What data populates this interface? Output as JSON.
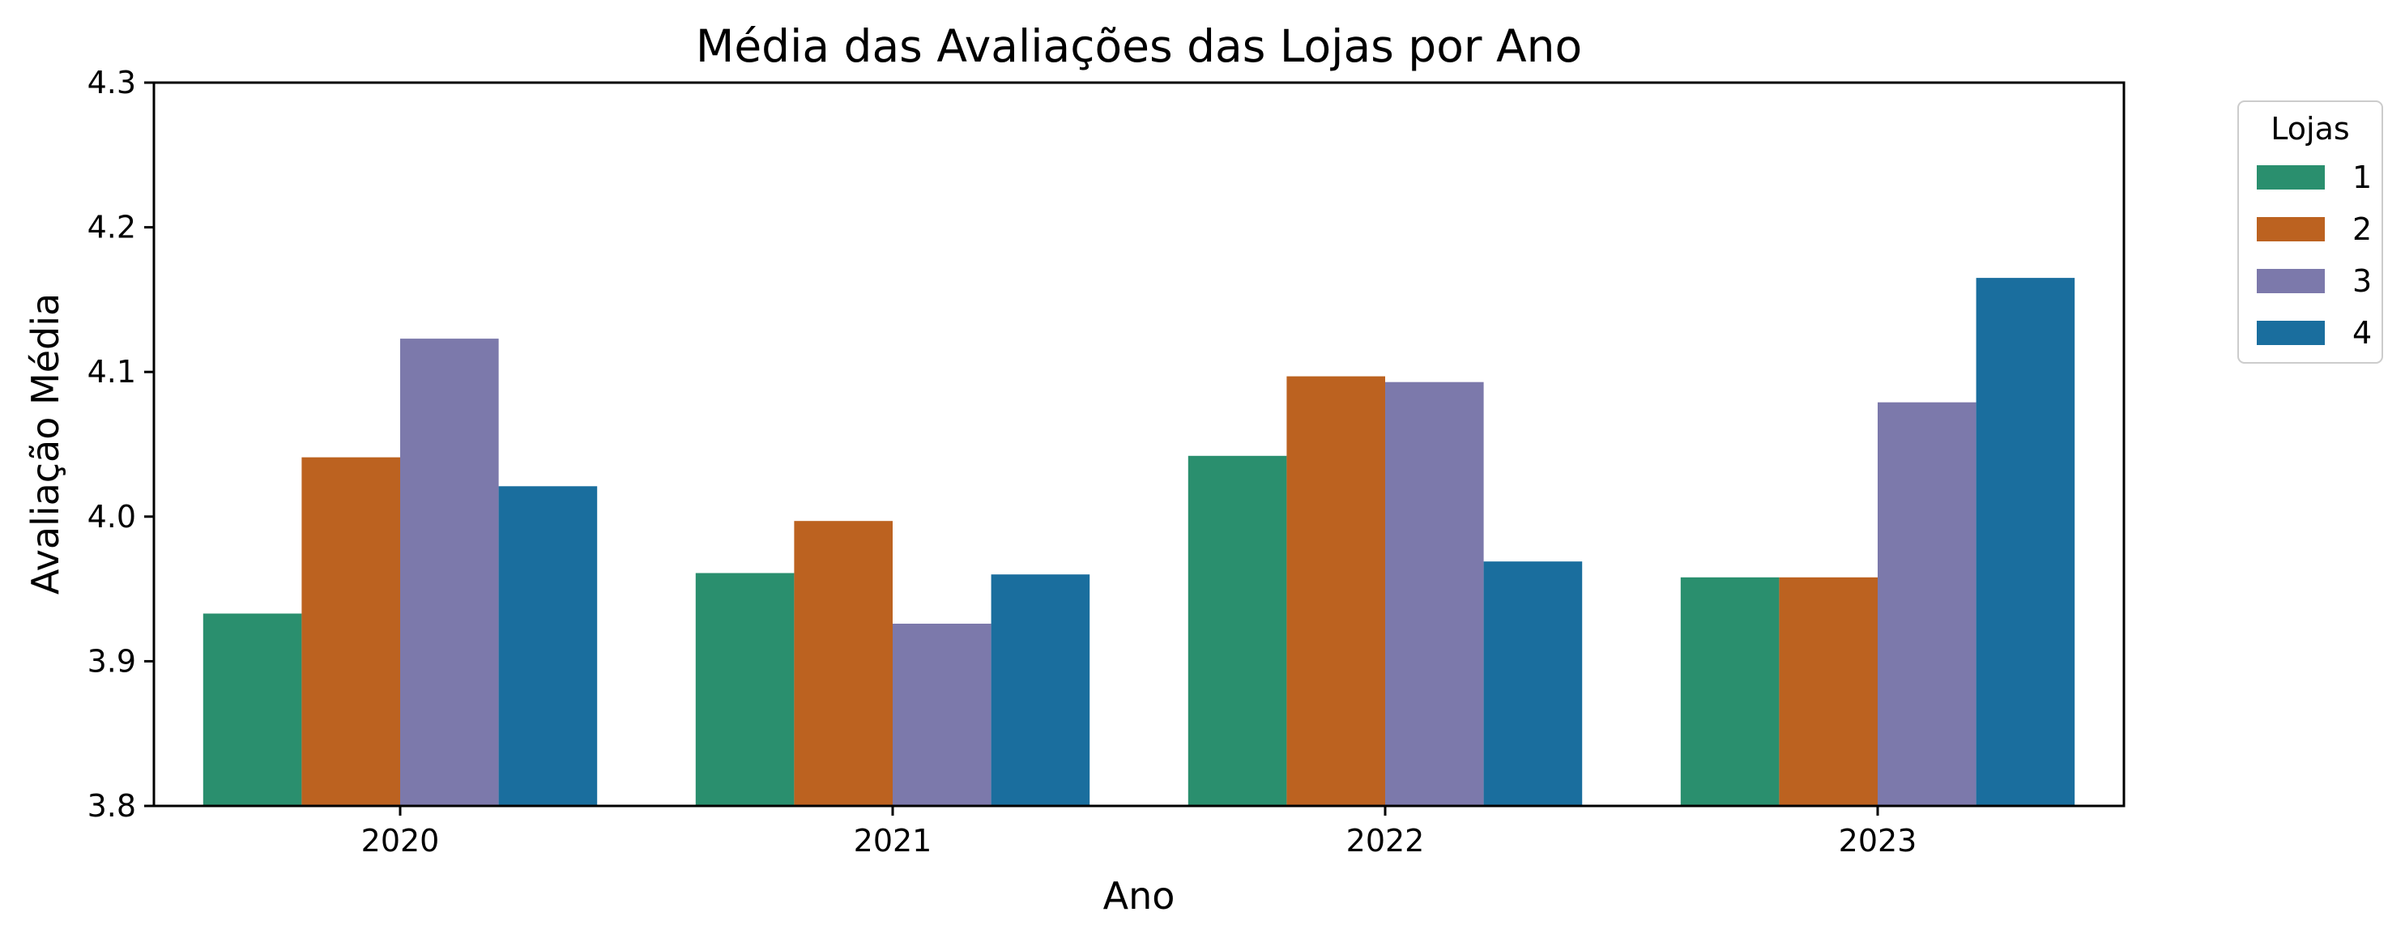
{
  "chart_data": {
    "type": "bar",
    "title": "Média das Avaliações das Lojas por Ano",
    "xlabel": "Ano",
    "ylabel": "Avaliação Média",
    "categories": [
      "2020",
      "2021",
      "2022",
      "2023"
    ],
    "ylim": [
      3.8,
      4.3
    ],
    "yticks": [
      "3.8",
      "3.9",
      "4.0",
      "4.1",
      "4.2",
      "4.3"
    ],
    "grid": false,
    "legend": {
      "title": "Lojas",
      "placement": "outside-top-right"
    },
    "series": [
      {
        "name": "1",
        "color": "#2a8f6e",
        "values": [
          3.933,
          3.961,
          4.042,
          3.958
        ]
      },
      {
        "name": "2",
        "color": "#bc6220",
        "values": [
          4.041,
          3.997,
          4.097,
          3.958
        ]
      },
      {
        "name": "3",
        "color": "#7c79ab",
        "values": [
          4.123,
          3.926,
          4.093,
          4.079
        ]
      },
      {
        "name": "4",
        "color": "#1a6e9e",
        "values": [
          4.021,
          3.96,
          3.969,
          4.165
        ]
      }
    ]
  }
}
